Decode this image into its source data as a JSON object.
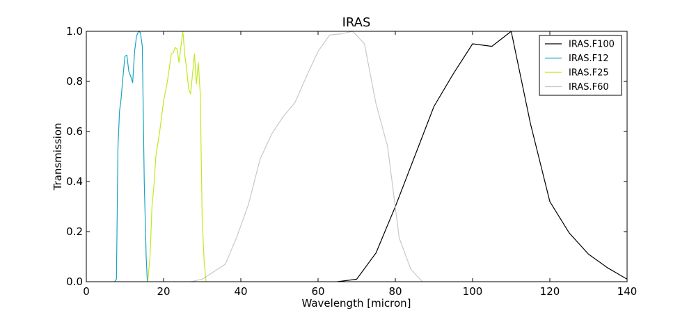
{
  "chart_data": {
    "type": "line",
    "title": "IRAS",
    "xlabel": "Wavelength [micron]",
    "ylabel": "Transmission",
    "xlim": [
      0,
      140
    ],
    "ylim": [
      0,
      1.0
    ],
    "xticks": [
      0,
      20,
      40,
      60,
      80,
      100,
      120,
      140
    ],
    "yticks": [
      0.0,
      0.2,
      0.4,
      0.6,
      0.8,
      1.0
    ],
    "xtick_labels": [
      "0",
      "20",
      "40",
      "60",
      "80",
      "100",
      "120",
      "140"
    ],
    "ytick_labels": [
      "0.0",
      "0.2",
      "0.4",
      "0.6",
      "0.8",
      "1.0"
    ],
    "grid": false,
    "legend_position": "top-right",
    "series": [
      {
        "name": "IRAS.F100",
        "color": "#000000",
        "x": [
          65,
          70,
          75,
          80,
          85,
          90,
          95,
          100,
          105,
          110,
          115,
          120,
          125,
          130,
          135,
          140
        ],
        "y": [
          0.0,
          0.01,
          0.115,
          0.3,
          0.5,
          0.7,
          0.83,
          0.95,
          0.94,
          1.0,
          0.63,
          0.32,
          0.195,
          0.11,
          0.055,
          0.01
        ]
      },
      {
        "name": "IRAS.F12",
        "color": "#17a3c2",
        "x": [
          7.3,
          7.8,
          8.2,
          8.6,
          9.0,
          9.5,
          10.0,
          10.5,
          11.0,
          11.5,
          12.0,
          12.5,
          13.0,
          13.5,
          14.0,
          14.5,
          15.0,
          15.5,
          15.8
        ],
        "y": [
          0.0,
          0.01,
          0.54,
          0.68,
          0.73,
          0.82,
          0.9,
          0.905,
          0.84,
          0.82,
          0.795,
          0.92,
          0.98,
          1.0,
          0.995,
          0.94,
          0.4,
          0.1,
          0.0
        ]
      },
      {
        "name": "IRAS.F25",
        "color": "#bfea1b",
        "x": [
          15.9,
          16.5,
          17.0,
          17.5,
          18.0,
          19.0,
          20.0,
          21.0,
          22.0,
          22.5,
          23.0,
          23.5,
          24.0,
          24.5,
          25.0,
          25.5,
          26.0,
          26.5,
          27.0,
          27.5,
          28.0,
          28.5,
          29.0,
          29.5,
          30.0,
          30.5,
          31.0
        ],
        "y": [
          0.0,
          0.1,
          0.3,
          0.38,
          0.5,
          0.6,
          0.72,
          0.8,
          0.91,
          0.915,
          0.935,
          0.93,
          0.875,
          0.94,
          1.0,
          0.905,
          0.845,
          0.77,
          0.75,
          0.83,
          0.91,
          0.79,
          0.875,
          0.75,
          0.25,
          0.08,
          0.0
        ]
      },
      {
        "name": "IRAS.F60",
        "color": "#c8c8c8",
        "x": [
          27,
          30,
          33,
          36,
          39,
          42,
          45,
          48,
          51,
          54,
          57,
          60,
          63,
          66,
          69,
          72,
          75,
          78,
          81,
          84,
          87
        ],
        "y": [
          0.0,
          0.01,
          0.04,
          0.07,
          0.18,
          0.31,
          0.49,
          0.59,
          0.66,
          0.715,
          0.82,
          0.92,
          0.985,
          0.99,
          1.0,
          0.95,
          0.71,
          0.54,
          0.175,
          0.05,
          0.0
        ]
      }
    ]
  }
}
